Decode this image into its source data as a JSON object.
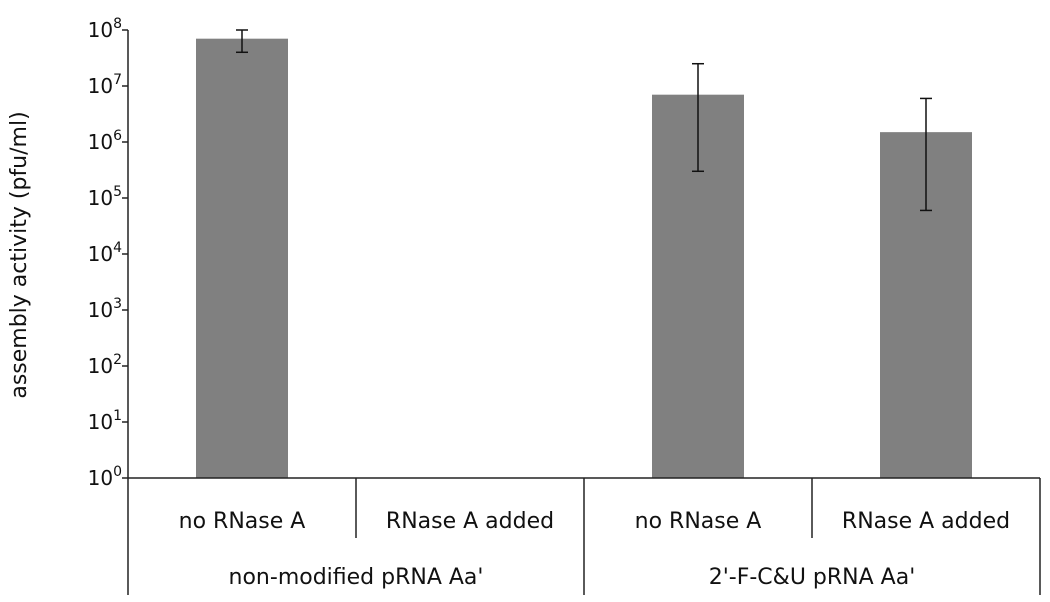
{
  "chart_data": {
    "type": "bar",
    "title": "",
    "ylabel": "assembly activity (pfu/ml)",
    "xlabel": "",
    "yscale": "log",
    "ylim": [
      1,
      100000000
    ],
    "y_ticks": [
      {
        "value": 1,
        "base": "10",
        "exp": "0"
      },
      {
        "value": 10,
        "base": "10",
        "exp": "1"
      },
      {
        "value": 100,
        "base": "10",
        "exp": "2"
      },
      {
        "value": 1000,
        "base": "10",
        "exp": "3"
      },
      {
        "value": 10000,
        "base": "10",
        "exp": "4"
      },
      {
        "value": 100000,
        "base": "10",
        "exp": "5"
      },
      {
        "value": 1000000,
        "base": "10",
        "exp": "6"
      },
      {
        "value": 10000000,
        "base": "10",
        "exp": "7"
      },
      {
        "value": 100000000,
        "base": "10",
        "exp": "8"
      }
    ],
    "categories": [
      "no RNase A",
      "RNase A added",
      "no RNase A",
      "RNase A added"
    ],
    "groups": [
      {
        "label": "non-modified pRNA Aa'",
        "categories": [
          0,
          1
        ]
      },
      {
        "label": "2'-F-C&U pRNA Aa'",
        "categories": [
          2,
          3
        ]
      }
    ],
    "values": [
      70000000,
      1,
      7000000,
      1500000
    ],
    "error_low": [
      40000000,
      null,
      300000,
      60000
    ],
    "error_high": [
      100000000,
      null,
      25000000,
      6000000
    ],
    "bar_color": "#808080",
    "grid": false,
    "legend": "none"
  }
}
